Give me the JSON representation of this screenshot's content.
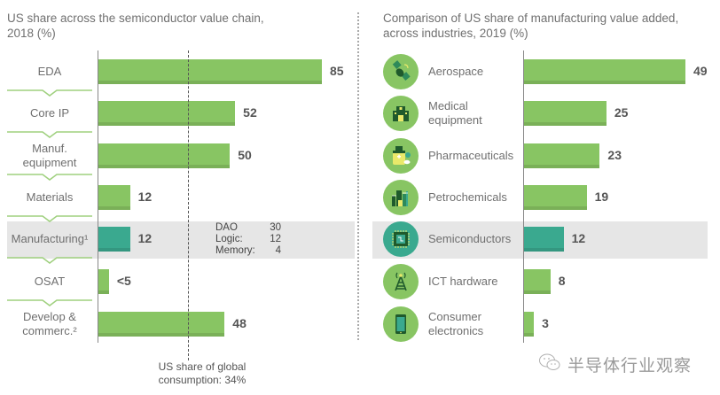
{
  "colors": {
    "bar": "#88c563",
    "highlight_bar": "#3aa98f",
    "highlight_band": "#e6e6e6",
    "chevron": "#9fd07e",
    "icon_circle": "#88c563",
    "icon_dark": "#1f5a2c"
  },
  "chart_data": [
    {
      "type": "bar",
      "orientation": "horizontal",
      "title": "US share across the semiconductor value chain, 2018 (%)",
      "categories": [
        "EDA",
        "Core IP",
        "Manuf. equipment",
        "Materials",
        "Manufacturing¹",
        "OSAT",
        "Develop & commerc.²"
      ],
      "values": [
        85,
        52,
        50,
        12,
        12,
        4,
        48
      ],
      "value_labels": [
        "85",
        "52",
        "50",
        "12",
        "12",
        "<5",
        "48"
      ],
      "highlighted": "Manufacturing¹",
      "xlim": [
        0,
        85
      ],
      "reference_line": {
        "value": 34,
        "label": "US share of global consumption: 34%"
      },
      "annotation": {
        "rows": [
          {
            "label": "DAO",
            "value": "30"
          },
          {
            "label": "Logic:",
            "value": "12"
          },
          {
            "label": "Memory:",
            "value": "4"
          }
        ]
      }
    },
    {
      "type": "bar",
      "orientation": "horizontal",
      "title": "Comparison of US share of manufacturing value added, across industries, 2019 (%)",
      "categories": [
        "Aerospace",
        "Medical equipment",
        "Pharmaceuticals",
        "Petrochemicals",
        "Semiconductors",
        "ICT hardware",
        "Consumer electronics"
      ],
      "icons": [
        "satellite-icon",
        "hospital-icon",
        "medicine-bottle-icon",
        "refinery-icon",
        "chip-icon",
        "antenna-tower-icon",
        "smartphone-icon"
      ],
      "values": [
        49,
        25,
        23,
        19,
        12,
        8,
        3
      ],
      "value_labels": [
        "49",
        "25",
        "23",
        "19",
        "12",
        "8",
        "3"
      ],
      "highlighted": "Semiconductors",
      "xlim": [
        0,
        49
      ]
    }
  ],
  "left": {
    "title_line1": "US share across the semiconductor value chain,",
    "title_line2": "2018 (%)",
    "labels": [
      [
        "EDA"
      ],
      [
        "Core IP"
      ],
      [
        "Manuf.",
        "equipment"
      ],
      [
        "Materials"
      ],
      [
        "Manufacturing¹"
      ],
      [
        "OSAT"
      ],
      [
        "Develop &",
        "commerc.²"
      ]
    ],
    "ref_label_line1": "US share of global",
    "ref_label_line2": "consumption: 34%"
  },
  "right": {
    "title_line1": "Comparison of US share of manufacturing value added,",
    "title_line2": "across industries, 2019 (%)",
    "labels": [
      [
        "Aerospace"
      ],
      [
        "Medical",
        "equipment"
      ],
      [
        "Pharmaceuticals"
      ],
      [
        "Petrochemicals"
      ],
      [
        "Semiconductors"
      ],
      [
        "ICT hardware"
      ],
      [
        "Consumer",
        "electronics"
      ]
    ]
  },
  "watermark": "半导体行业观察"
}
